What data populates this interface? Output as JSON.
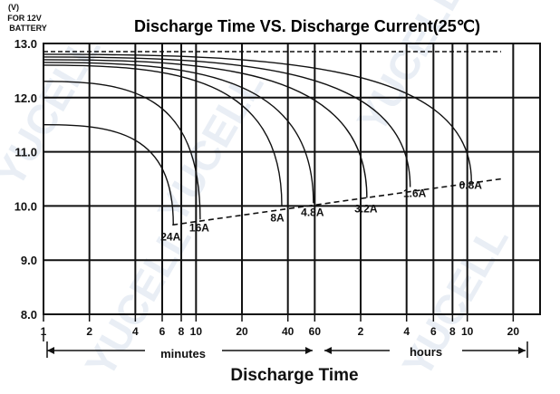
{
  "chart_data": {
    "type": "line",
    "title": "Discharge Time VS. Discharge Current(25℃)",
    "ylabel_unit": "(V)",
    "ylabel_note_1": "FOR 12V",
    "ylabel_note_2": "BATTERY",
    "xlabel": "Discharge Time",
    "x_axis_type": "log",
    "x_unit": "minutes",
    "range_labels": {
      "minutes": "minutes",
      "hours": "hours"
    },
    "ylim": [
      8.0,
      13.0
    ],
    "xlim_minutes": [
      1,
      1800
    ],
    "y_ticks": [
      "8.0",
      "9.0",
      "10.0",
      "11.0",
      "12.0",
      "13.0"
    ],
    "y_tick_values": [
      8,
      9,
      10,
      11,
      12,
      13
    ],
    "x_ticks": [
      {
        "label": "1",
        "minutes": 1
      },
      {
        "label": "2",
        "minutes": 2
      },
      {
        "label": "4",
        "minutes": 4
      },
      {
        "label": "6",
        "minutes": 6
      },
      {
        "label": "8",
        "minutes": 8
      },
      {
        "label": "10",
        "minutes": 10
      },
      {
        "label": "20",
        "minutes": 20
      },
      {
        "label": "40",
        "minutes": 40
      },
      {
        "label": "60",
        "minutes": 60
      },
      {
        "label": "2",
        "minutes": 120
      },
      {
        "label": "4",
        "minutes": 240
      },
      {
        "label": "6",
        "minutes": 360
      },
      {
        "label": "8",
        "minutes": 480
      },
      {
        "label": "10",
        "minutes": 600
      },
      {
        "label": "20",
        "minutes": 1200
      }
    ],
    "series": [
      {
        "name": "24A",
        "start_v": 11.5,
        "end_v": 9.65,
        "end_minutes": 7.0
      },
      {
        "name": "16A",
        "start_v": 12.3,
        "end_v": 9.75,
        "end_minutes": 10.5
      },
      {
        "name": "8A",
        "start_v": 12.6,
        "end_v": 10.0,
        "end_minutes": 36
      },
      {
        "name": "4.8A",
        "start_v": 12.65,
        "end_v": 10.05,
        "end_minutes": 58
      },
      {
        "name": "3.2A",
        "start_v": 12.7,
        "end_v": 10.15,
        "end_minutes": 130
      },
      {
        "name": "1.6A",
        "start_v": 12.75,
        "end_v": 10.35,
        "end_minutes": 250
      },
      {
        "name": "0.8A",
        "start_v": 12.8,
        "end_v": 10.45,
        "end_minutes": 630
      }
    ],
    "float_line_v": 12.85,
    "cutoff_line": {
      "style": "dashed",
      "from": {
        "minutes": 7.0,
        "v": 9.65
      },
      "to": {
        "minutes": 1000,
        "v": 10.5
      }
    },
    "grid": true,
    "watermark": "YUCELL"
  }
}
